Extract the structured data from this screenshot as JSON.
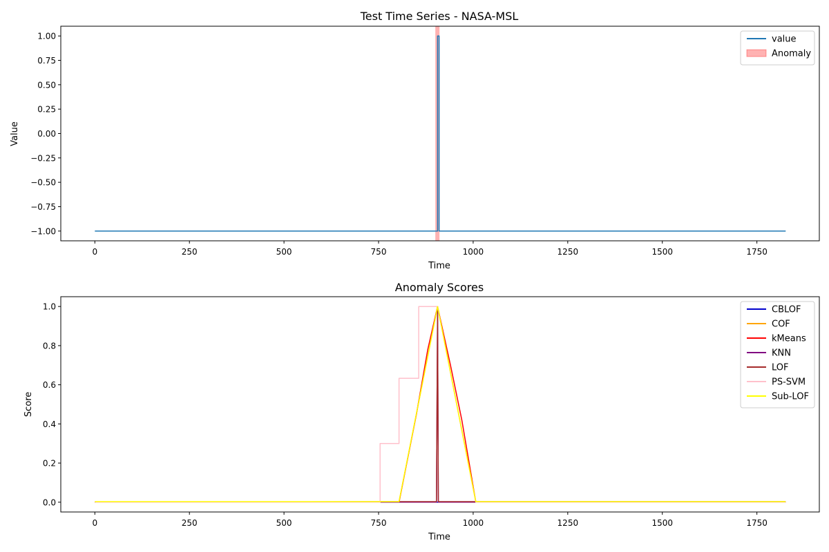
{
  "chart_data": [
    {
      "type": "line",
      "title": "Test Time Series - NASA-MSL",
      "xlabel": "Time",
      "ylabel": "Value",
      "xlim": [
        -90,
        1915
      ],
      "ylim": [
        -1.1,
        1.1
      ],
      "xticks": [
        0,
        250,
        500,
        750,
        1000,
        1250,
        1500,
        1750
      ],
      "yticks": [
        -1.0,
        -0.75,
        -0.5,
        -0.25,
        0.0,
        0.25,
        0.5,
        0.75,
        1.0
      ],
      "ytick_labels": [
        "−1.00",
        "−0.75",
        "−0.50",
        "−0.25",
        "0.00",
        "0.25",
        "0.50",
        "0.75",
        "1.00"
      ],
      "grid": false,
      "legend_position": "top-right",
      "series": [
        {
          "name": "value",
          "color": "#1f77b4",
          "x": [
            0,
            906,
            906,
            910,
            910,
            1826
          ],
          "y": [
            -1,
            -1,
            1,
            1,
            -1,
            -1
          ]
        }
      ],
      "spans": [
        {
          "name": "Anomaly",
          "x0": 900,
          "x1": 911,
          "color": "#ff0000",
          "alpha": 0.3
        }
      ]
    },
    {
      "type": "line",
      "title": "Anomaly Scores",
      "xlabel": "Time",
      "ylabel": "Score",
      "xlim": [
        -90,
        1915
      ],
      "ylim": [
        -0.05,
        1.05
      ],
      "xticks": [
        0,
        250,
        500,
        750,
        1000,
        1250,
        1500,
        1750
      ],
      "yticks": [
        0.0,
        0.2,
        0.4,
        0.6,
        0.8,
        1.0
      ],
      "ytick_labels": [
        "0.0",
        "0.2",
        "0.4",
        "0.6",
        "0.8",
        "1.0"
      ],
      "grid": false,
      "legend_position": "top-right",
      "series": [
        {
          "name": "CBLOF",
          "color": "#0000cd",
          "x": [
            0,
            1826
          ],
          "y": [
            0,
            0
          ]
        },
        {
          "name": "COF",
          "color": "#ffa500",
          "x": [
            0,
            804,
            906,
            1007,
            1826
          ],
          "y": [
            0,
            0,
            1,
            0,
            0
          ]
        },
        {
          "name": "kMeans",
          "color": "#ff0000",
          "x": [
            0,
            804,
            850,
            880,
            906,
            940,
            970,
            1007,
            1826
          ],
          "y": [
            0,
            0,
            0.45,
            0.78,
            1,
            0.7,
            0.42,
            0,
            0
          ]
        },
        {
          "name": "KNN",
          "color": "#800080",
          "x": [
            0,
            903,
            906,
            908,
            1826
          ],
          "y": [
            0,
            0,
            1,
            0,
            0
          ]
        },
        {
          "name": "LOF",
          "color": "#a52a2a",
          "x": [
            0,
            804,
            903,
            906,
            908,
            1826
          ],
          "y": [
            0,
            0.003,
            0.003,
            1,
            0.003,
            0.003
          ]
        },
        {
          "name": "PS-SVM",
          "color": "#ffc0cb",
          "x": [
            0,
            754,
            754,
            804,
            804,
            856,
            856,
            906,
            1007,
            1826
          ],
          "y": [
            0,
            0,
            0.3,
            0.3,
            0.633,
            0.633,
            1,
            1,
            0,
            0
          ]
        },
        {
          "name": "Sub-LOF",
          "color": "#ffff00",
          "x": [
            0,
            804,
            906,
            1007,
            1826
          ],
          "y": [
            0.003,
            0.003,
            1,
            0.003,
            0.003
          ]
        }
      ]
    }
  ]
}
